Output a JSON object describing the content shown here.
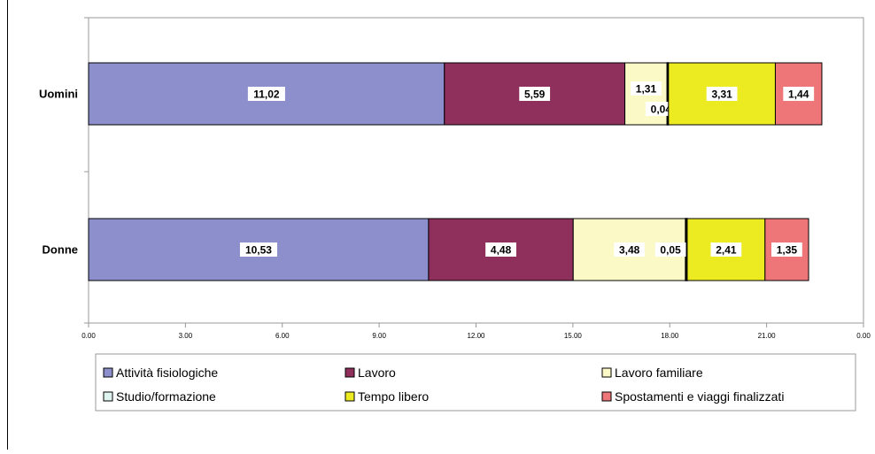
{
  "chart_data": {
    "type": "bar",
    "orientation": "horizontal",
    "stacked": true,
    "categories": [
      "Uomini",
      "Donne"
    ],
    "series": [
      {
        "name": "Attività fisiologiche",
        "values": [
          11.02,
          10.53
        ],
        "labels": [
          "11,02",
          "10,53"
        ],
        "color": "#8d8fcc"
      },
      {
        "name": "Lavoro",
        "values": [
          5.59,
          4.48
        ],
        "labels": [
          "5,59",
          "4,48"
        ],
        "color": "#8e2f5c"
      },
      {
        "name": "Lavoro familiare",
        "values": [
          1.31,
          3.48
        ],
        "labels": [
          "1,31",
          "3,48"
        ],
        "color": "#fbf9c6"
      },
      {
        "name": "Studio/formazione",
        "values": [
          0.04,
          0.05
        ],
        "labels": [
          "0,04",
          "0,05"
        ],
        "color": "#dff3ef"
      },
      {
        "name": "Tempo libero",
        "values": [
          3.31,
          2.41
        ],
        "labels": [
          "3,31",
          "2,41"
        ],
        "color": "#ecea20"
      },
      {
        "name": "Spostamenti e viaggi finalizzati",
        "values": [
          1.44,
          1.35
        ],
        "labels": [
          "1,44",
          "1,35"
        ],
        "color": "#ef7678"
      }
    ],
    "x_ticks": [
      "0.00",
      "3.00",
      "6.00",
      "9.00",
      "12.00",
      "15.00",
      "18.00",
      "21.00",
      "0.00"
    ],
    "xlim": [
      0,
      24
    ],
    "grid": false,
    "legend_position": "bottom"
  }
}
